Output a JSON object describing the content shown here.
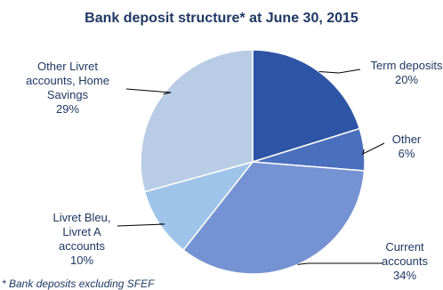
{
  "chart_data": {
    "type": "pie",
    "title": "Bank deposit structure* at June 30, 2015",
    "footnote": "* Bank deposits excluding SFEF",
    "slices": [
      {
        "label": [
          "Term deposits"
        ],
        "percent_label": "20%",
        "value": 20,
        "color": "#2e55a5"
      },
      {
        "label": [
          "Other"
        ],
        "percent_label": "6%",
        "value": 6,
        "color": "#4a6fbd"
      },
      {
        "label": [
          "Current",
          "accounts"
        ],
        "percent_label": "34%",
        "value": 34,
        "color": "#7593d2"
      },
      {
        "label": [
          "Livret Bleu,",
          "Livret A",
          "accounts"
        ],
        "percent_label": "10%",
        "value": 10,
        "color": "#9fc4ea"
      },
      {
        "label": [
          "Other Livret",
          "accounts, Home",
          "Savings"
        ],
        "percent_label": "29%",
        "value": 29,
        "color": "#b9cce6"
      }
    ]
  }
}
